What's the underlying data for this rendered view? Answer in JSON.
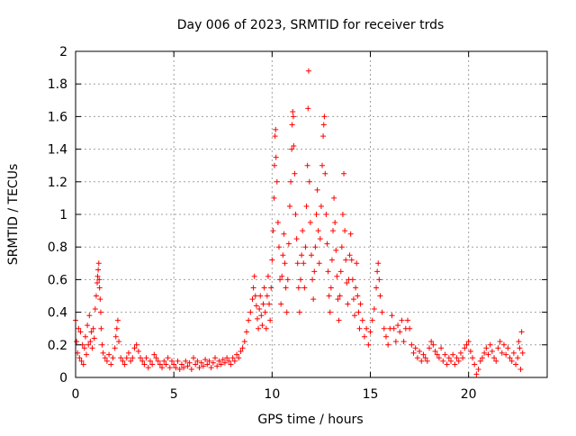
{
  "chart_data": {
    "type": "scatter",
    "title": "Day 006 of 2023, SRMTID for receiver trds",
    "xlabel": "GPS time / hours",
    "ylabel": "SRMTID / TECUs",
    "xlim": [
      0,
      24
    ],
    "ylim": [
      0,
      2
    ],
    "xticks": [
      0,
      5,
      10,
      15,
      20
    ],
    "xtick_labels": [
      "0",
      "5",
      "10",
      "15",
      "20"
    ],
    "yticks": [
      0,
      0.2,
      0.4,
      0.6,
      0.8,
      1,
      1.2,
      1.4,
      1.6,
      1.8,
      2
    ],
    "ytick_labels": [
      "0",
      "0.2",
      "0.4",
      "0.6",
      "0.8",
      "1",
      "1.2",
      "1.4",
      "1.6",
      "1.8",
      "2"
    ],
    "grid": true,
    "marker": "+",
    "series": [
      {
        "name": "SRMTID",
        "color": "#ff0000",
        "points": [
          [
            0.0,
            0.35
          ],
          [
            0.05,
            0.22
          ],
          [
            0.1,
            0.15
          ],
          [
            0.15,
            0.3
          ],
          [
            0.2,
            0.12
          ],
          [
            0.25,
            0.28
          ],
          [
            0.3,
            0.1
          ],
          [
            0.35,
            0.2
          ],
          [
            0.4,
            0.08
          ],
          [
            0.45,
            0.18
          ],
          [
            0.5,
            0.25
          ],
          [
            0.55,
            0.14
          ],
          [
            0.6,
            0.32
          ],
          [
            0.65,
            0.2
          ],
          [
            0.7,
            0.38
          ],
          [
            0.75,
            0.22
          ],
          [
            0.8,
            0.28
          ],
          [
            0.85,
            0.18
          ],
          [
            0.9,
            0.3
          ],
          [
            0.95,
            0.24
          ],
          [
            1.0,
            0.42
          ],
          [
            1.05,
            0.5
          ],
          [
            1.1,
            0.58
          ],
          [
            1.12,
            0.62
          ],
          [
            1.15,
            0.66
          ],
          [
            1.18,
            0.7
          ],
          [
            1.2,
            0.6
          ],
          [
            1.22,
            0.55
          ],
          [
            1.25,
            0.48
          ],
          [
            1.28,
            0.4
          ],
          [
            1.3,
            0.3
          ],
          [
            1.35,
            0.2
          ],
          [
            1.4,
            0.15
          ],
          [
            1.5,
            0.12
          ],
          [
            1.6,
            0.1
          ],
          [
            1.7,
            0.14
          ],
          [
            1.8,
            0.08
          ],
          [
            1.9,
            0.12
          ],
          [
            2.0,
            0.18
          ],
          [
            2.05,
            0.25
          ],
          [
            2.1,
            0.3
          ],
          [
            2.15,
            0.35
          ],
          [
            2.2,
            0.22
          ],
          [
            2.3,
            0.12
          ],
          [
            2.4,
            0.1
          ],
          [
            2.5,
            0.08
          ],
          [
            2.6,
            0.12
          ],
          [
            2.7,
            0.15
          ],
          [
            2.8,
            0.1
          ],
          [
            2.9,
            0.12
          ],
          [
            3.0,
            0.18
          ],
          [
            3.1,
            0.2
          ],
          [
            3.2,
            0.16
          ],
          [
            3.3,
            0.12
          ],
          [
            3.4,
            0.1
          ],
          [
            3.5,
            0.08
          ],
          [
            3.6,
            0.12
          ],
          [
            3.7,
            0.06
          ],
          [
            3.8,
            0.1
          ],
          [
            3.9,
            0.08
          ],
          [
            4.0,
            0.14
          ],
          [
            4.1,
            0.12
          ],
          [
            4.2,
            0.1
          ],
          [
            4.3,
            0.08
          ],
          [
            4.4,
            0.06
          ],
          [
            4.5,
            0.1
          ],
          [
            4.6,
            0.08
          ],
          [
            4.7,
            0.12
          ],
          [
            4.8,
            0.06
          ],
          [
            4.9,
            0.1
          ],
          [
            5.0,
            0.08
          ],
          [
            5.1,
            0.06
          ],
          [
            5.2,
            0.1
          ],
          [
            5.3,
            0.05
          ],
          [
            5.4,
            0.08
          ],
          [
            5.5,
            0.06
          ],
          [
            5.6,
            0.1
          ],
          [
            5.7,
            0.07
          ],
          [
            5.8,
            0.09
          ],
          [
            5.9,
            0.05
          ],
          [
            6.0,
            0.12
          ],
          [
            6.1,
            0.08
          ],
          [
            6.2,
            0.1
          ],
          [
            6.3,
            0.06
          ],
          [
            6.4,
            0.09
          ],
          [
            6.5,
            0.07
          ],
          [
            6.6,
            0.11
          ],
          [
            6.7,
            0.08
          ],
          [
            6.8,
            0.1
          ],
          [
            6.9,
            0.06
          ],
          [
            7.0,
            0.09
          ],
          [
            7.1,
            0.12
          ],
          [
            7.2,
            0.07
          ],
          [
            7.3,
            0.1
          ],
          [
            7.4,
            0.08
          ],
          [
            7.5,
            0.11
          ],
          [
            7.6,
            0.09
          ],
          [
            7.7,
            0.12
          ],
          [
            7.8,
            0.1
          ],
          [
            7.9,
            0.08
          ],
          [
            8.0,
            0.12
          ],
          [
            8.1,
            0.1
          ],
          [
            8.2,
            0.14
          ],
          [
            8.3,
            0.12
          ],
          [
            8.4,
            0.16
          ],
          [
            8.5,
            0.18
          ],
          [
            8.6,
            0.22
          ],
          [
            8.7,
            0.28
          ],
          [
            8.8,
            0.35
          ],
          [
            8.9,
            0.4
          ],
          [
            9.0,
            0.48
          ],
          [
            9.05,
            0.55
          ],
          [
            9.1,
            0.62
          ],
          [
            9.15,
            0.5
          ],
          [
            9.2,
            0.44
          ],
          [
            9.25,
            0.36
          ],
          [
            9.3,
            0.3
          ],
          [
            9.35,
            0.42
          ],
          [
            9.4,
            0.5
          ],
          [
            9.45,
            0.38
          ],
          [
            9.5,
            0.32
          ],
          [
            9.55,
            0.45
          ],
          [
            9.6,
            0.55
          ],
          [
            9.65,
            0.4
          ],
          [
            9.7,
            0.3
          ],
          [
            9.75,
            0.5
          ],
          [
            9.8,
            0.62
          ],
          [
            9.85,
            0.45
          ],
          [
            9.9,
            0.35
          ],
          [
            9.95,
            0.55
          ],
          [
            10.0,
            0.72
          ],
          [
            10.05,
            0.9
          ],
          [
            10.1,
            1.1
          ],
          [
            10.12,
            1.3
          ],
          [
            10.15,
            1.48
          ],
          [
            10.18,
            1.52
          ],
          [
            10.2,
            1.35
          ],
          [
            10.25,
            1.2
          ],
          [
            10.3,
            0.95
          ],
          [
            10.35,
            0.8
          ],
          [
            10.4,
            0.6
          ],
          [
            10.45,
            0.45
          ],
          [
            10.5,
            0.62
          ],
          [
            10.55,
            0.75
          ],
          [
            10.6,
            0.88
          ],
          [
            10.65,
            0.7
          ],
          [
            10.7,
            0.55
          ],
          [
            10.75,
            0.4
          ],
          [
            10.8,
            0.6
          ],
          [
            10.85,
            0.82
          ],
          [
            10.9,
            1.05
          ],
          [
            10.95,
            1.2
          ],
          [
            11.0,
            1.4
          ],
          [
            11.02,
            1.55
          ],
          [
            11.05,
            1.63
          ],
          [
            11.08,
            1.6
          ],
          [
            11.1,
            1.42
          ],
          [
            11.15,
            1.25
          ],
          [
            11.2,
            1.0
          ],
          [
            11.25,
            0.85
          ],
          [
            11.3,
            0.7
          ],
          [
            11.35,
            0.55
          ],
          [
            11.4,
            0.4
          ],
          [
            11.45,
            0.6
          ],
          [
            11.5,
            0.75
          ],
          [
            11.55,
            0.9
          ],
          [
            11.6,
            0.7
          ],
          [
            11.65,
            0.55
          ],
          [
            11.7,
            0.8
          ],
          [
            11.75,
            1.05
          ],
          [
            11.8,
            1.3
          ],
          [
            11.83,
            1.65
          ],
          [
            11.86,
            1.88
          ],
          [
            11.9,
            1.2
          ],
          [
            11.95,
            0.95
          ],
          [
            12.0,
            0.75
          ],
          [
            12.05,
            0.6
          ],
          [
            12.1,
            0.48
          ],
          [
            12.15,
            0.65
          ],
          [
            12.2,
            0.8
          ],
          [
            12.25,
            1.0
          ],
          [
            12.3,
            1.15
          ],
          [
            12.35,
            0.9
          ],
          [
            12.4,
            0.7
          ],
          [
            12.45,
            0.85
          ],
          [
            12.5,
            1.05
          ],
          [
            12.55,
            1.3
          ],
          [
            12.6,
            1.48
          ],
          [
            12.63,
            1.55
          ],
          [
            12.66,
            1.6
          ],
          [
            12.7,
            1.25
          ],
          [
            12.75,
            1.0
          ],
          [
            12.8,
            0.82
          ],
          [
            12.85,
            0.65
          ],
          [
            12.9,
            0.5
          ],
          [
            12.95,
            0.4
          ],
          [
            13.0,
            0.55
          ],
          [
            13.05,
            0.72
          ],
          [
            13.1,
            0.9
          ],
          [
            13.15,
            1.1
          ],
          [
            13.2,
            0.95
          ],
          [
            13.25,
            0.78
          ],
          [
            13.3,
            0.62
          ],
          [
            13.35,
            0.48
          ],
          [
            13.4,
            0.35
          ],
          [
            13.45,
            0.5
          ],
          [
            13.5,
            0.65
          ],
          [
            13.55,
            0.8
          ],
          [
            13.6,
            1.0
          ],
          [
            13.65,
            1.25
          ],
          [
            13.7,
            0.9
          ],
          [
            13.75,
            0.72
          ],
          [
            13.8,
            0.58
          ],
          [
            13.85,
            0.45
          ],
          [
            13.9,
            0.6
          ],
          [
            13.95,
            0.75
          ],
          [
            14.0,
            0.88
          ],
          [
            14.05,
            0.72
          ],
          [
            14.1,
            0.6
          ],
          [
            14.15,
            0.48
          ],
          [
            14.2,
            0.38
          ],
          [
            14.25,
            0.55
          ],
          [
            14.3,
            0.7
          ],
          [
            14.35,
            0.5
          ],
          [
            14.4,
            0.4
          ],
          [
            14.45,
            0.3
          ],
          [
            14.5,
            0.45
          ],
          [
            14.6,
            0.35
          ],
          [
            14.7,
            0.25
          ],
          [
            14.8,
            0.3
          ],
          [
            14.9,
            0.2
          ],
          [
            15.0,
            0.28
          ],
          [
            15.1,
            0.35
          ],
          [
            15.2,
            0.42
          ],
          [
            15.3,
            0.55
          ],
          [
            15.35,
            0.65
          ],
          [
            15.4,
            0.7
          ],
          [
            15.45,
            0.6
          ],
          [
            15.5,
            0.5
          ],
          [
            15.6,
            0.4
          ],
          [
            15.7,
            0.3
          ],
          [
            15.8,
            0.25
          ],
          [
            15.9,
            0.2
          ],
          [
            16.0,
            0.3
          ],
          [
            16.1,
            0.38
          ],
          [
            16.2,
            0.3
          ],
          [
            16.3,
            0.22
          ],
          [
            16.4,
            0.32
          ],
          [
            16.5,
            0.28
          ],
          [
            16.6,
            0.35
          ],
          [
            16.7,
            0.22
          ],
          [
            16.8,
            0.3
          ],
          [
            16.9,
            0.35
          ],
          [
            17.0,
            0.3
          ],
          [
            17.1,
            0.2
          ],
          [
            17.2,
            0.15
          ],
          [
            17.3,
            0.18
          ],
          [
            17.4,
            0.12
          ],
          [
            17.5,
            0.16
          ],
          [
            17.6,
            0.1
          ],
          [
            17.7,
            0.14
          ],
          [
            17.8,
            0.12
          ],
          [
            17.9,
            0.1
          ],
          [
            18.0,
            0.18
          ],
          [
            18.1,
            0.22
          ],
          [
            18.2,
            0.2
          ],
          [
            18.3,
            0.16
          ],
          [
            18.4,
            0.14
          ],
          [
            18.5,
            0.12
          ],
          [
            18.6,
            0.18
          ],
          [
            18.7,
            0.1
          ],
          [
            18.8,
            0.14
          ],
          [
            18.9,
            0.08
          ],
          [
            19.0,
            0.12
          ],
          [
            19.1,
            0.1
          ],
          [
            19.2,
            0.14
          ],
          [
            19.3,
            0.08
          ],
          [
            19.4,
            0.12
          ],
          [
            19.5,
            0.1
          ],
          [
            19.6,
            0.15
          ],
          [
            19.7,
            0.12
          ],
          [
            19.8,
            0.18
          ],
          [
            19.9,
            0.2
          ],
          [
            20.0,
            0.22
          ],
          [
            20.1,
            0.16
          ],
          [
            20.2,
            0.12
          ],
          [
            20.3,
            0.08
          ],
          [
            20.4,
            0.02
          ],
          [
            20.5,
            0.05
          ],
          [
            20.6,
            0.1
          ],
          [
            20.7,
            0.12
          ],
          [
            20.8,
            0.15
          ],
          [
            20.9,
            0.18
          ],
          [
            21.0,
            0.14
          ],
          [
            21.1,
            0.2
          ],
          [
            21.2,
            0.16
          ],
          [
            21.3,
            0.12
          ],
          [
            21.4,
            0.1
          ],
          [
            21.5,
            0.18
          ],
          [
            21.6,
            0.22
          ],
          [
            21.7,
            0.15
          ],
          [
            21.8,
            0.2
          ],
          [
            21.9,
            0.14
          ],
          [
            22.0,
            0.18
          ],
          [
            22.1,
            0.12
          ],
          [
            22.2,
            0.1
          ],
          [
            22.3,
            0.15
          ],
          [
            22.4,
            0.08
          ],
          [
            22.5,
            0.12
          ],
          [
            22.55,
            0.22
          ],
          [
            22.6,
            0.18
          ],
          [
            22.65,
            0.05
          ],
          [
            22.7,
            0.28
          ],
          [
            22.75,
            0.15
          ]
        ]
      }
    ]
  }
}
